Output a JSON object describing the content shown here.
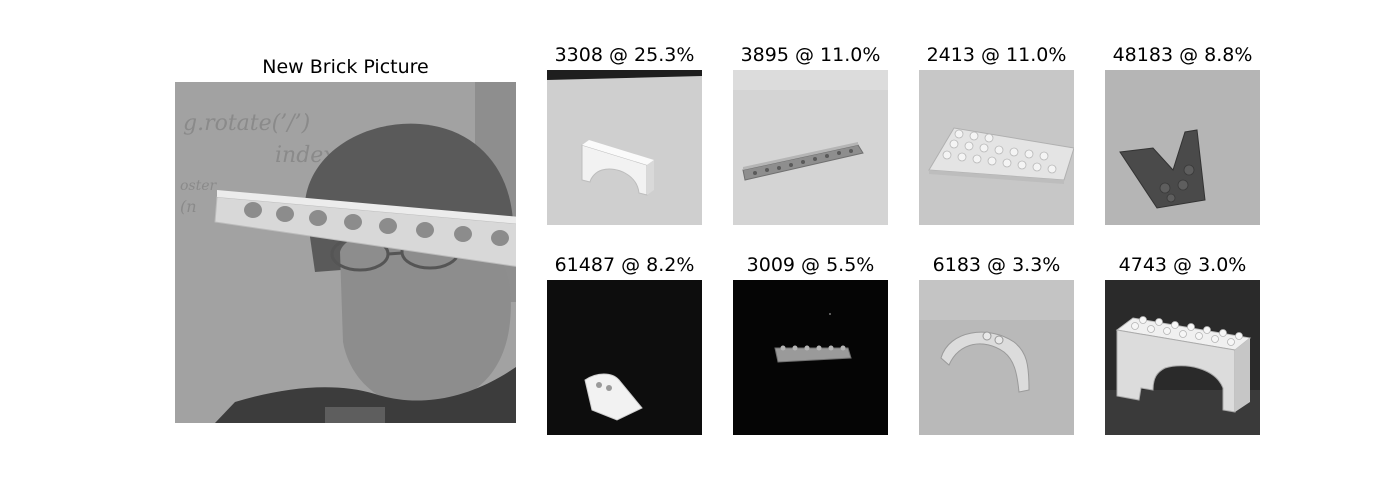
{
  "main_panel": {
    "title": "New Brick Picture"
  },
  "matches": [
    {
      "label": "3308 @ 25.3%"
    },
    {
      "label": "3895 @ 11.0%"
    },
    {
      "label": "2413 @ 11.0%"
    },
    {
      "label": "48183 @ 8.8%"
    },
    {
      "label": "61487 @ 8.2%"
    },
    {
      "label": "3009 @ 5.5%"
    },
    {
      "label": "6183 @ 3.3%"
    },
    {
      "label": "4743 @ 3.0%"
    }
  ],
  "handwriting": [
    "g.rotate(’/’)",
    "index()",
    "oster",
    "(n"
  ]
}
